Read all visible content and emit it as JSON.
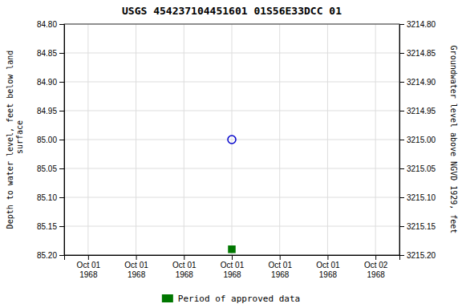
{
  "chart_data": {
    "type": "scatter",
    "title": "USGS 454237104451601 01S56E33DCC 01",
    "categories": [
      "Oct 01\n1968",
      "Oct 01\n1968",
      "Oct 01\n1968",
      "Oct 01\n1968",
      "Oct 01\n1968",
      "Oct 01\n1968",
      "Oct 02\n1968"
    ],
    "series": [
      {
        "color": "#0000cc",
        "marker": "open-circle",
        "values": [
          null,
          null,
          null,
          85.0,
          null,
          null,
          null
        ]
      },
      {
        "name": "Period of approved data",
        "color": "#007700",
        "marker": "square",
        "values": [
          null,
          null,
          null,
          85.19,
          null,
          null,
          null
        ]
      }
    ],
    "ylabel": "Depth to water level, feet below land\n surface",
    "ylim": [
      85.2,
      84.8
    ],
    "yticks": [
      {
        "value": 84.8,
        "label": "84.80"
      },
      {
        "value": 84.85,
        "label": "84.85"
      },
      {
        "value": 84.9,
        "label": "84.90"
      },
      {
        "value": 84.95,
        "label": "84.95"
      },
      {
        "value": 85.0,
        "label": "85.00"
      },
      {
        "value": 85.05,
        "label": "85.05"
      },
      {
        "value": 85.1,
        "label": "85.10"
      },
      {
        "value": 85.15,
        "label": "85.15"
      },
      {
        "value": 85.2,
        "label": "85.20"
      }
    ],
    "y2label": "Groundwater level above NGVD 1929, feet",
    "y2lim": [
      3215.2,
      3214.8
    ],
    "y2ticks": [
      {
        "value": 3215.2,
        "label": "3215.20"
      },
      {
        "value": 3215.15,
        "label": "3215.15"
      },
      {
        "value": 3215.1,
        "label": "3215.10"
      },
      {
        "value": 3215.05,
        "label": "3215.05"
      },
      {
        "value": 3215.0,
        "label": "3215.00"
      },
      {
        "value": 3214.95,
        "label": "3214.95"
      },
      {
        "value": 3214.9,
        "label": "3214.90"
      },
      {
        "value": 3214.85,
        "label": "3214.85"
      },
      {
        "value": 3214.8,
        "label": "3214.80"
      }
    ],
    "grid": true,
    "legend": "bottom"
  }
}
